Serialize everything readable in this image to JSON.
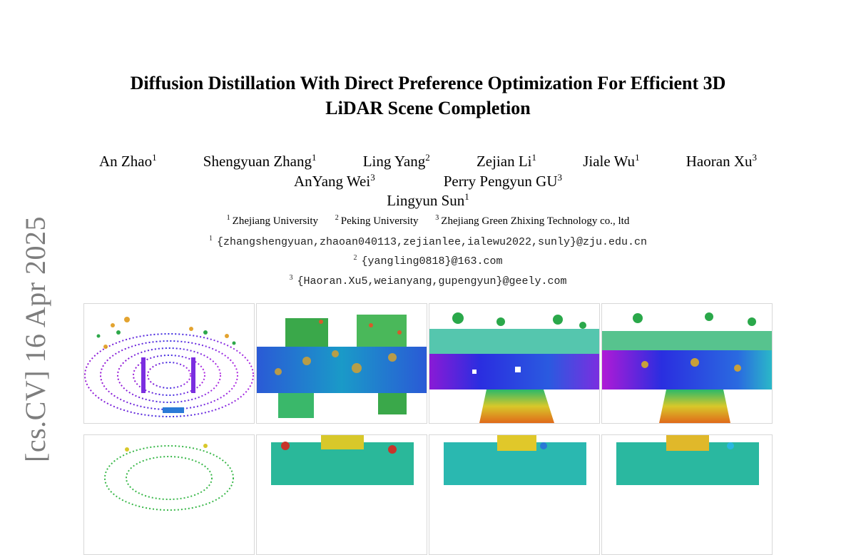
{
  "arxiv_stamp": "[cs.CV]  16 Apr 2025",
  "title_line1": "Diffusion Distillation With Direct Preference Optimization For Efficient 3D",
  "title_line2": "LiDAR Scene Completion",
  "authors": [
    {
      "name": "An Zhao",
      "sup": "1"
    },
    {
      "name": "Shengyuan Zhang",
      "sup": "1"
    },
    {
      "name": "Ling Yang",
      "sup": "2"
    },
    {
      "name": "Zejian Li",
      "sup": "1"
    },
    {
      "name": "Jiale Wu",
      "sup": "1"
    },
    {
      "name": "Haoran Xu",
      "sup": "3"
    },
    {
      "name": "AnYang Wei",
      "sup": "3"
    },
    {
      "name": "Perry Pengyun GU",
      "sup": "3"
    },
    {
      "name": "Lingyun Sun",
      "sup": "1"
    }
  ],
  "affiliations": [
    {
      "sup": "1",
      "name": "Zhejiang University"
    },
    {
      "sup": "2",
      "name": "Peking University"
    },
    {
      "sup": "3",
      "name": "Zhejiang Green Zhixing Technology co., ltd"
    }
  ],
  "emails": [
    {
      "sup": "1",
      "text": "{zhangshengyuan,zhaoan040113,zejianlee,ialewu2022,sunly}@zju.edu.cn"
    },
    {
      "sup": "2",
      "text": "{yangling0818}@163.com"
    },
    {
      "sup": "3",
      "text": "{Haoran.Xu5,weianyang,gupengyun}@geely.com"
    }
  ],
  "figure_panels": [
    "lidar-scan-sparse-icon",
    "lidar-completion-a-icon",
    "lidar-completion-b-icon",
    "lidar-completion-c-icon",
    "lidar-scan-sparse-2-icon",
    "lidar-completion-d-icon",
    "lidar-completion-e-icon",
    "lidar-completion-f-icon"
  ]
}
